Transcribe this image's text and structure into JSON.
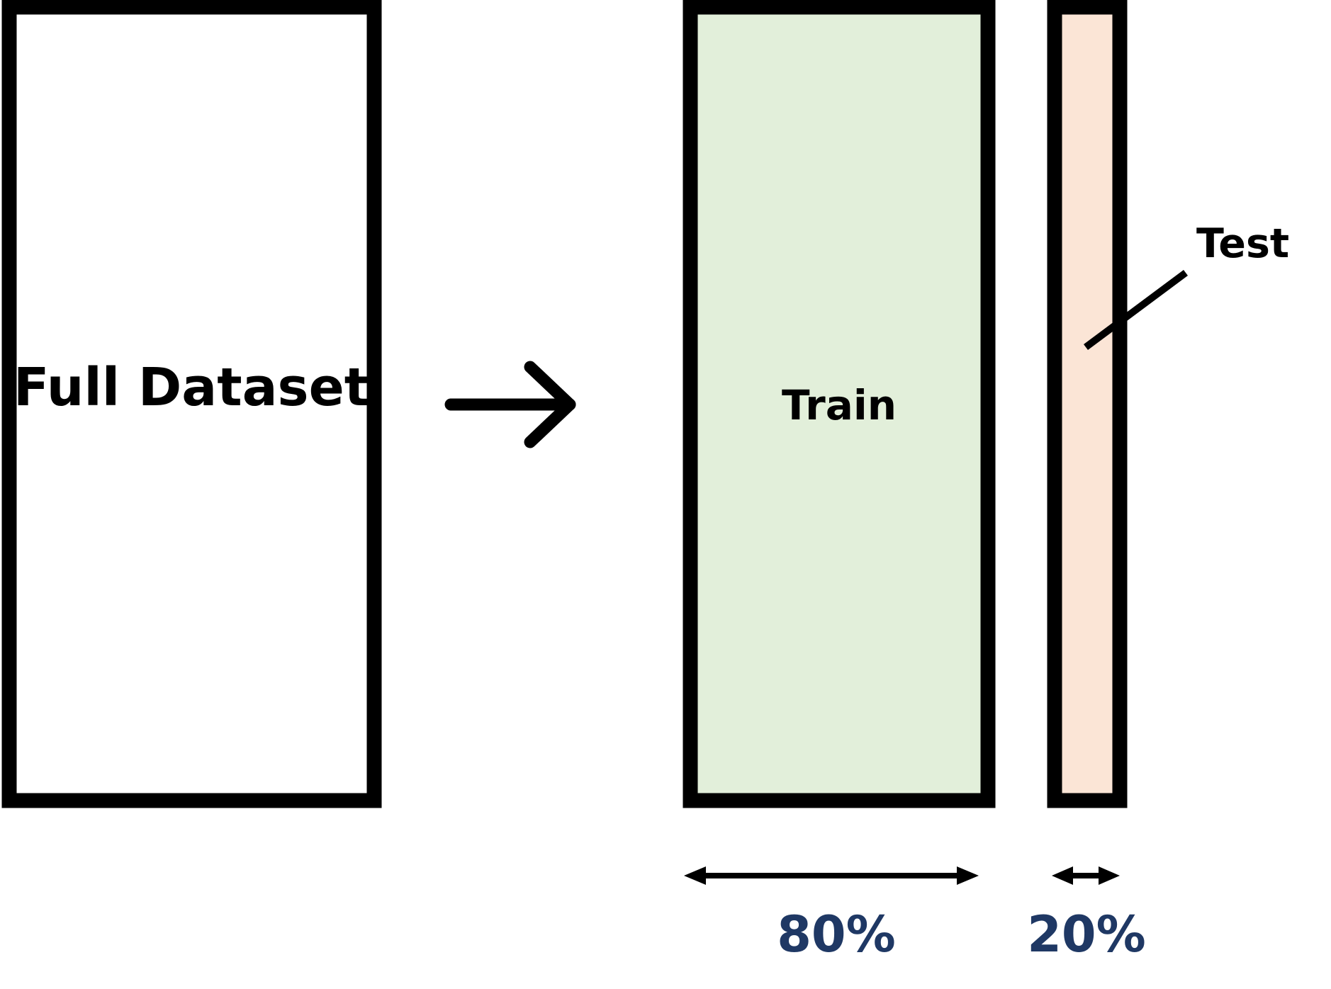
{
  "diagram": {
    "full_label": "Full Dataset",
    "train_label": "Train",
    "test_label": "Test",
    "train_pct": "80%",
    "test_pct": "20%"
  },
  "colors": {
    "outline": "#000000",
    "full_fill": "#ffffff",
    "train_fill": "#e2efda",
    "test_fill": "#fbe5d6",
    "pct_text": "#1f3864"
  }
}
